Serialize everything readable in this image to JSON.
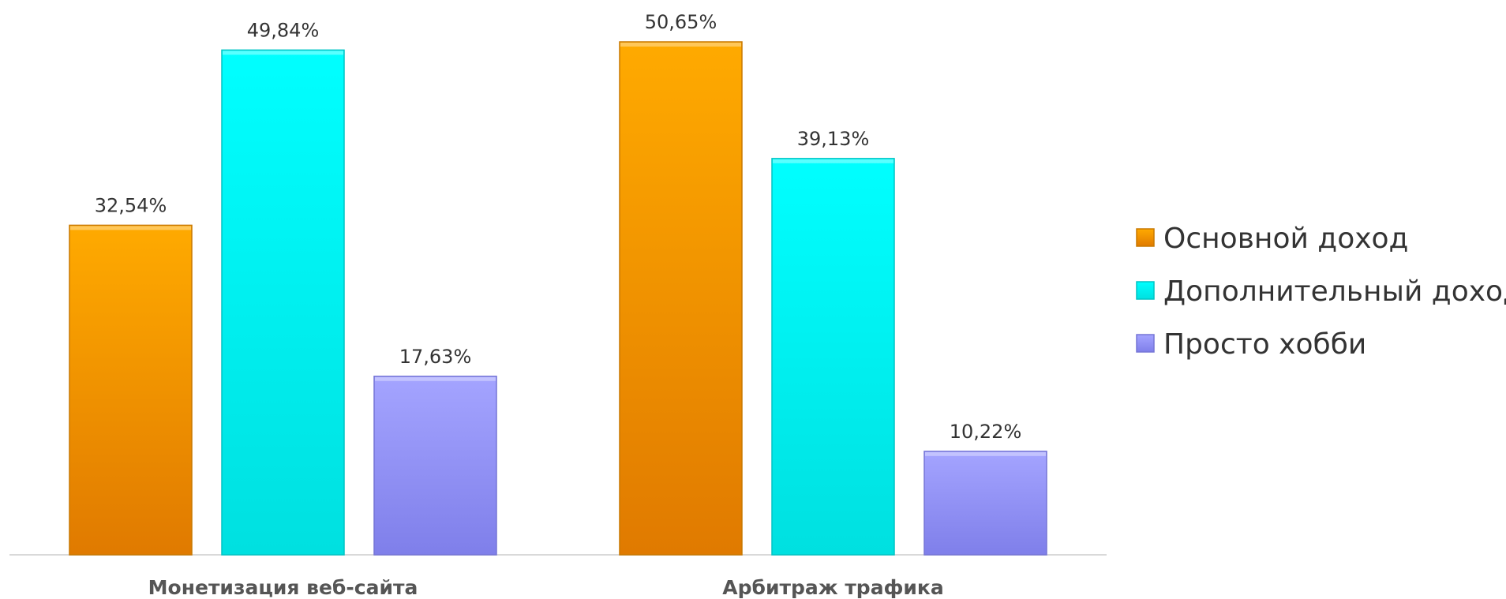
{
  "chart_data": {
    "type": "bar",
    "title": "",
    "xlabel": "",
    "ylabel": "",
    "categories": [
      "Монетизация веб-сайта",
      "Арбитраж трафика"
    ],
    "series": [
      {
        "name": "Основной доход",
        "values": [
          32.54,
          50.65
        ],
        "labels": [
          "32,54%",
          "50,65%"
        ],
        "color": "#F39C12"
      },
      {
        "name": "Дополнительный доход",
        "values": [
          49.84,
          39.13
        ],
        "labels": [
          "49,84%",
          "39,13%"
        ],
        "color": "#00F0F0"
      },
      {
        "name": "Просто хобби",
        "values": [
          17.63,
          10.22
        ],
        "labels": [
          "17,63%",
          "10,22%"
        ],
        "color": "#9999FF"
      }
    ],
    "ylim": [
      0,
      55
    ],
    "grid": false,
    "legend_position": "right"
  }
}
